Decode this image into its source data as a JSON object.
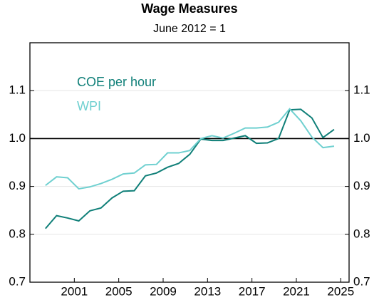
{
  "chart_data": {
    "type": "line",
    "title": "Wage Measures",
    "subtitle": "June 2012 = 1",
    "x": [
      1998.4,
      1999.4,
      2000.4,
      2001.4,
      2002.4,
      2003.4,
      2004.4,
      2005.4,
      2006.4,
      2007.4,
      2008.4,
      2009.4,
      2010.4,
      2011.4,
      2012.4,
      2013.4,
      2014.4,
      2015.4,
      2016.4,
      2017.4,
      2018.4,
      2019.4,
      2020.4,
      2021.4,
      2022.4,
      2023.4,
      2024.4
    ],
    "series": [
      {
        "name": "COE per hour",
        "color": "#0f7f78",
        "values": [
          0.812,
          0.839,
          0.834,
          0.828,
          0.849,
          0.855,
          0.876,
          0.89,
          0.891,
          0.922,
          0.928,
          0.94,
          0.948,
          0.967,
          0.999,
          0.996,
          0.996,
          1.001,
          1.006,
          0.99,
          0.991,
          1.0,
          1.06,
          1.061,
          1.043,
          1.002,
          1.019
        ]
      },
      {
        "name": "WPI",
        "color": "#6fd0d0",
        "values": [
          0.902,
          0.92,
          0.918,
          0.895,
          0.899,
          0.906,
          0.915,
          0.926,
          0.928,
          0.945,
          0.946,
          0.97,
          0.97,
          0.975,
          1.0,
          1.006,
          1.001,
          1.011,
          1.022,
          1.022,
          1.024,
          1.034,
          1.062,
          1.037,
          1.003,
          0.981,
          0.984
        ]
      }
    ],
    "xlim": [
      1997,
      2025.75
    ],
    "xticks": [
      2001,
      2005,
      2009,
      2013,
      2017,
      2021,
      2025
    ],
    "ylim": [
      0.7,
      1.2
    ],
    "yticks": [
      0.7,
      0.8,
      0.9,
      {
        "value": 1,
        "label": "1.0"
      },
      1.1
    ],
    "reference_line": 1,
    "grid": true
  }
}
